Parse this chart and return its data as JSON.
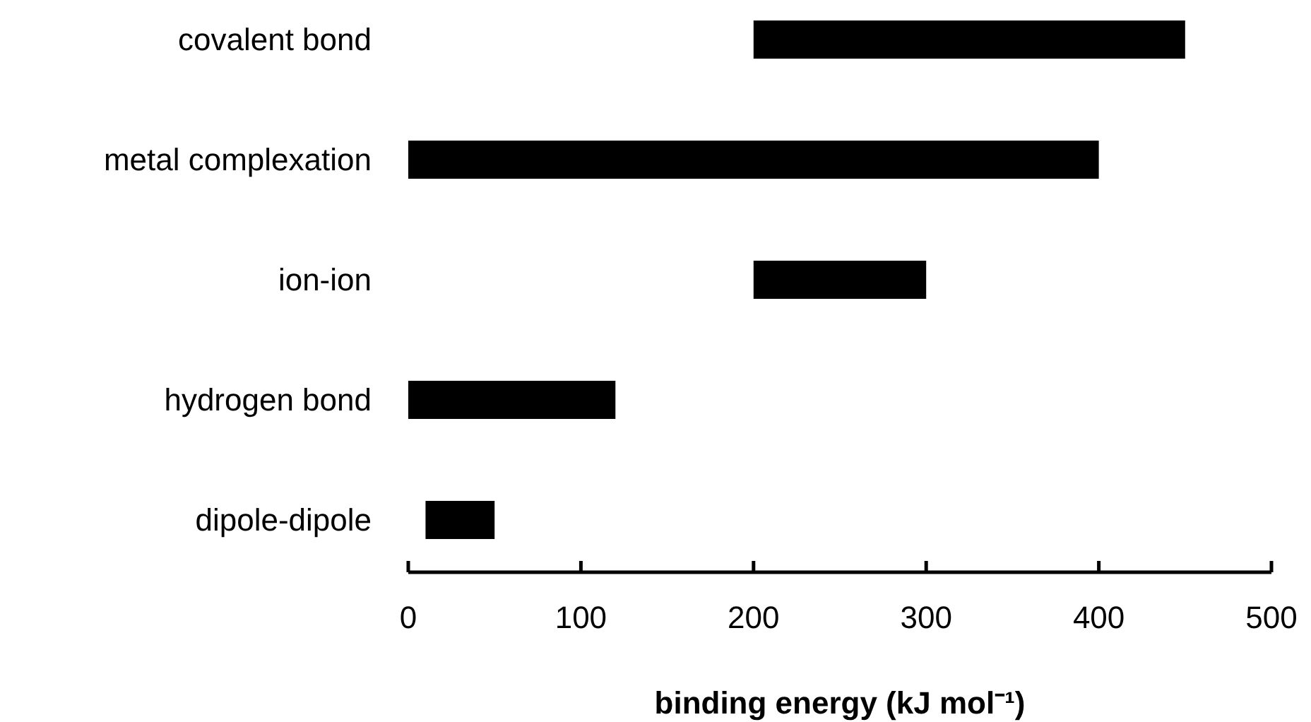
{
  "chart_data": {
    "type": "bar",
    "orientation": "horizontal",
    "xlabel": "binding energy (kJ mol⁻¹)",
    "categories": [
      "covalent bond",
      "metal complexation",
      "ion-ion",
      "hydrogen bond",
      "dipole-dipole"
    ],
    "base": [
      200,
      0,
      200,
      0,
      10
    ],
    "values": [
      250,
      400,
      100,
      120,
      40
    ],
    "color": "#000000",
    "xlim": [
      0,
      500
    ],
    "xticks": [
      0,
      100,
      200,
      300,
      400,
      500
    ],
    "grid": false
  }
}
